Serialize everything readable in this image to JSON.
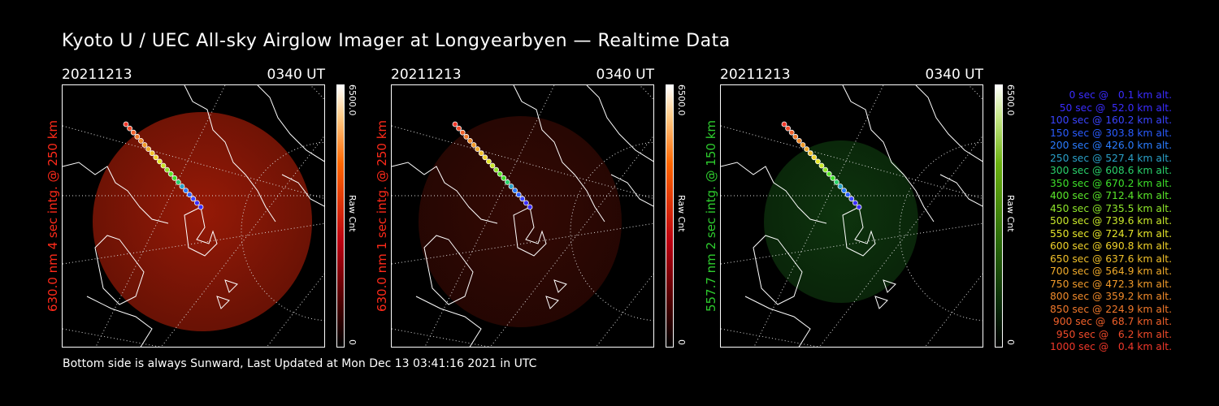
{
  "title": "Kyoto U / UEC All-sky Airglow Imager at Longyearbyen — Realtime Data",
  "footer": "Bottom side is always Sunward, Last Updated at Mon Dec 13 03:41:16 2021 in UTC",
  "panels": [
    {
      "date": "20211213",
      "time": "0340 UT",
      "side_label": "630.0 nm 4 sec intg. @ 250 km",
      "label_color": "#ff2a1a",
      "colorbar": {
        "max": "6500.0",
        "unit": "Raw Cnt",
        "min": "0"
      },
      "colorbar_theme": "red",
      "airglow_color": "#b01e08",
      "airglow_opacity": 0.85
    },
    {
      "date": "20211213",
      "time": "0340 UT",
      "side_label": "630.0 nm 1 sec intg. @ 250 km",
      "label_color": "#ff2a1a",
      "colorbar": {
        "max": "6500.0",
        "unit": "Raw Cnt",
        "min": "0"
      },
      "colorbar_theme": "red",
      "airglow_color": "#3a0a04",
      "airglow_opacity": 0.9
    },
    {
      "date": "20211213",
      "time": "0340 UT",
      "side_label": "557.7 nm 2 sec intg. @ 150 km",
      "label_color": "#2ecc2e",
      "colorbar": {
        "max": "6500.0",
        "unit": "Raw Cnt",
        "min": "0"
      },
      "colorbar_theme": "green",
      "airglow_color": "#0f3a0f",
      "airglow_opacity": 0.9
    }
  ],
  "legend": [
    {
      "text": "0 sec @   0.1 km alt.",
      "color": "#3a2cff"
    },
    {
      "text": "50 sec @  52.0 km alt.",
      "color": "#3a2cff"
    },
    {
      "text": "100 sec @ 160.2 km alt.",
      "color": "#3a44ff"
    },
    {
      "text": "150 sec @ 303.8 km alt.",
      "color": "#2a5cff"
    },
    {
      "text": "200 sec @ 426.0 km alt.",
      "color": "#2a7cff"
    },
    {
      "text": "250 sec @ 527.4 km alt.",
      "color": "#2aa0c8"
    },
    {
      "text": "300 sec @ 608.6 km alt.",
      "color": "#2ad06a"
    },
    {
      "text": "350 sec @ 670.2 km alt.",
      "color": "#3ee02a"
    },
    {
      "text": "400 sec @ 712.4 km alt.",
      "color": "#5ae62a"
    },
    {
      "text": "450 sec @ 735.5 km alt.",
      "color": "#8ee62a"
    },
    {
      "text": "500 sec @ 739.6 km alt.",
      "color": "#c8e62a"
    },
    {
      "text": "550 sec @ 724.7 km alt.",
      "color": "#e6e62a"
    },
    {
      "text": "600 sec @ 690.8 km alt.",
      "color": "#f0d22a"
    },
    {
      "text": "650 sec @ 637.6 km alt.",
      "color": "#f0c02a"
    },
    {
      "text": "700 sec @ 564.9 km alt.",
      "color": "#f0aa2a"
    },
    {
      "text": "750 sec @ 472.3 km alt.",
      "color": "#f09a2a"
    },
    {
      "text": "800 sec @ 359.2 km alt.",
      "color": "#f08a2a"
    },
    {
      "text": "850 sec @ 224.9 km alt.",
      "color": "#f0782a"
    },
    {
      "text": "900 sec @  68.7 km alt.",
      "color": "#f0602a"
    },
    {
      "text": "950 sec @   6.2 km alt.",
      "color": "#f04a2a"
    },
    {
      "text": "1000 sec @   0.4 km alt.",
      "color": "#f0382a"
    }
  ]
}
